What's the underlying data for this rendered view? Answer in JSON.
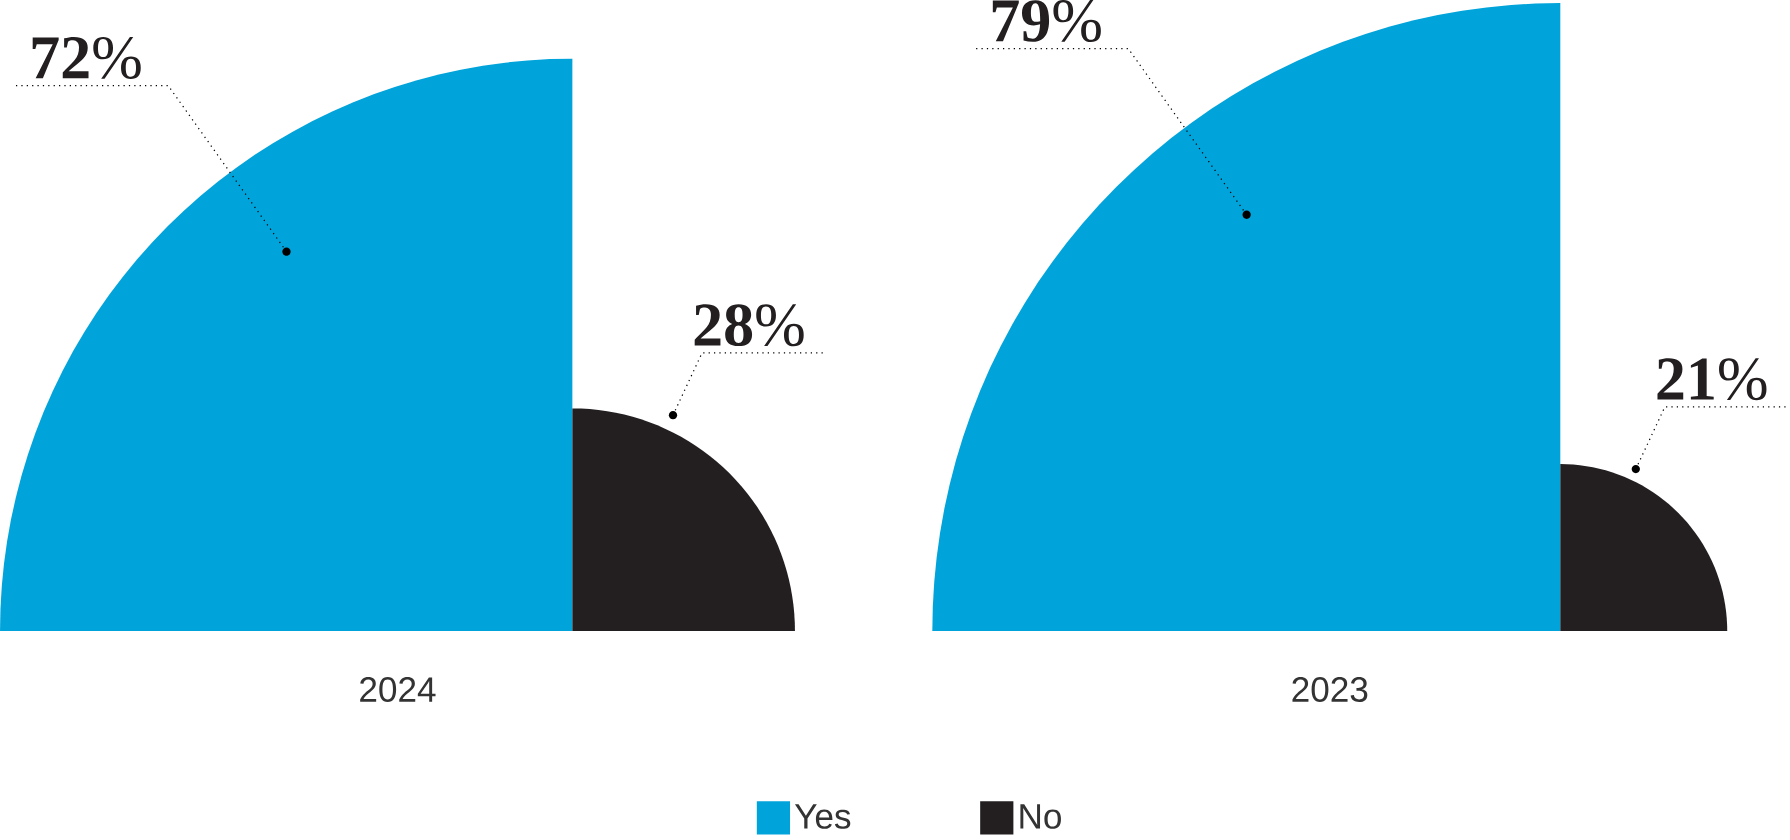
{
  "chart_data": {
    "type": "other",
    "categories": [
      "2024",
      "2023"
    ],
    "legend": "bottom",
    "series": [
      {
        "name": "Yes",
        "color": "#00a3da",
        "values": [
          72,
          79
        ],
        "value_labels": [
          "**72**%",
          "**79**%"
        ]
      },
      {
        "name": "No",
        "color": "#231f20",
        "values": [
          28,
          21
        ],
        "value_labels": [
          "**28**%",
          "**21**%"
        ]
      }
    ]
  }
}
